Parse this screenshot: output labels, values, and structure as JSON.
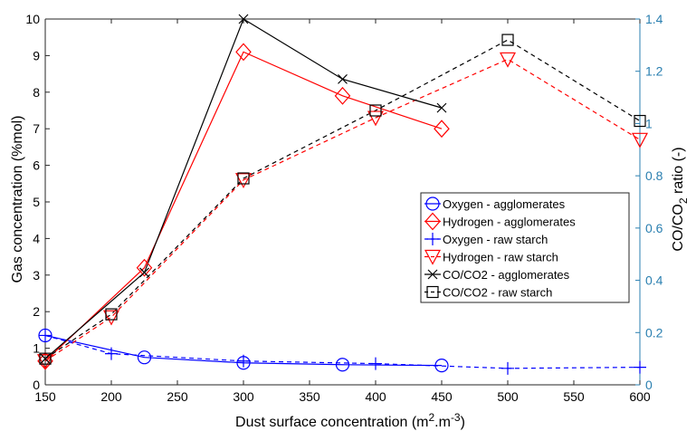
{
  "chart_data": {
    "type": "line",
    "xlabel_main": "Dust surface concentration (m",
    "xlabel_sup": "2",
    "xlabel_rest": ".m",
    "xlabel_sup2": "-3",
    "xlabel_end": ")",
    "ylabel_left": "Gas concentration (%mol)",
    "ylabel_right_main": "CO/CO",
    "ylabel_right_sub": "2",
    "ylabel_right_end": " ratio (-)",
    "xlim": [
      150,
      600
    ],
    "ylim_left": [
      0,
      10
    ],
    "ylim_right": [
      0,
      1.4
    ],
    "x_ticks": [
      "150",
      "200",
      "250",
      "300",
      "350",
      "400",
      "450",
      "500",
      "550",
      "600"
    ],
    "y_ticks_left": [
      "0",
      "1",
      "2",
      "3",
      "4",
      "5",
      "6",
      "7",
      "8",
      "9",
      "10"
    ],
    "y_ticks_right": [
      "0",
      "0.2",
      "0.4",
      "0.6",
      "0.8",
      "1",
      "1.2",
      "1.4"
    ],
    "grid": false,
    "legend_position": "center-right",
    "right_axis_color": "#2a7fb0",
    "series": [
      {
        "name": "Oxygen - agglomerates",
        "axis": "left",
        "color": "#0000ff",
        "marker": "circle",
        "dash": false,
        "x": [
          150,
          225,
          300,
          375,
          450
        ],
        "y": [
          1.35,
          0.75,
          0.6,
          0.55,
          0.53
        ]
      },
      {
        "name": "Hydrogen - agglomerates",
        "axis": "left",
        "color": "#ff0000",
        "marker": "diamond",
        "dash": false,
        "x": [
          150,
          225,
          300,
          375,
          450
        ],
        "y": [
          0.65,
          3.2,
          9.1,
          7.9,
          7.0
        ]
      },
      {
        "name": "Oxygen - raw starch",
        "axis": "left",
        "color": "#0000ff",
        "marker": "plus",
        "dash": true,
        "x": [
          150,
          200,
          300,
          400,
          500,
          600
        ],
        "y": [
          1.35,
          0.85,
          0.65,
          0.58,
          0.45,
          0.48
        ]
      },
      {
        "name": "Hydrogen - raw starch",
        "axis": "left",
        "color": "#ff0000",
        "marker": "triangle-down",
        "dash": true,
        "x": [
          150,
          200,
          300,
          400,
          500,
          600
        ],
        "y": [
          0.65,
          1.85,
          5.6,
          7.3,
          8.9,
          6.7
        ]
      },
      {
        "name": "CO/CO2 - agglomerates",
        "axis": "right",
        "color": "#000000",
        "marker": "x",
        "dash": false,
        "x": [
          150,
          225,
          300,
          375,
          450
        ],
        "y": [
          0.1,
          0.43,
          1.4,
          1.17,
          1.06
        ]
      },
      {
        "name": "CO/CO2 - raw starch",
        "axis": "right",
        "color": "#000000",
        "marker": "square",
        "dash": true,
        "x": [
          150,
          200,
          300,
          400,
          500,
          600
        ],
        "y": [
          0.1,
          0.27,
          0.79,
          1.05,
          1.32,
          1.01
        ]
      }
    ]
  }
}
